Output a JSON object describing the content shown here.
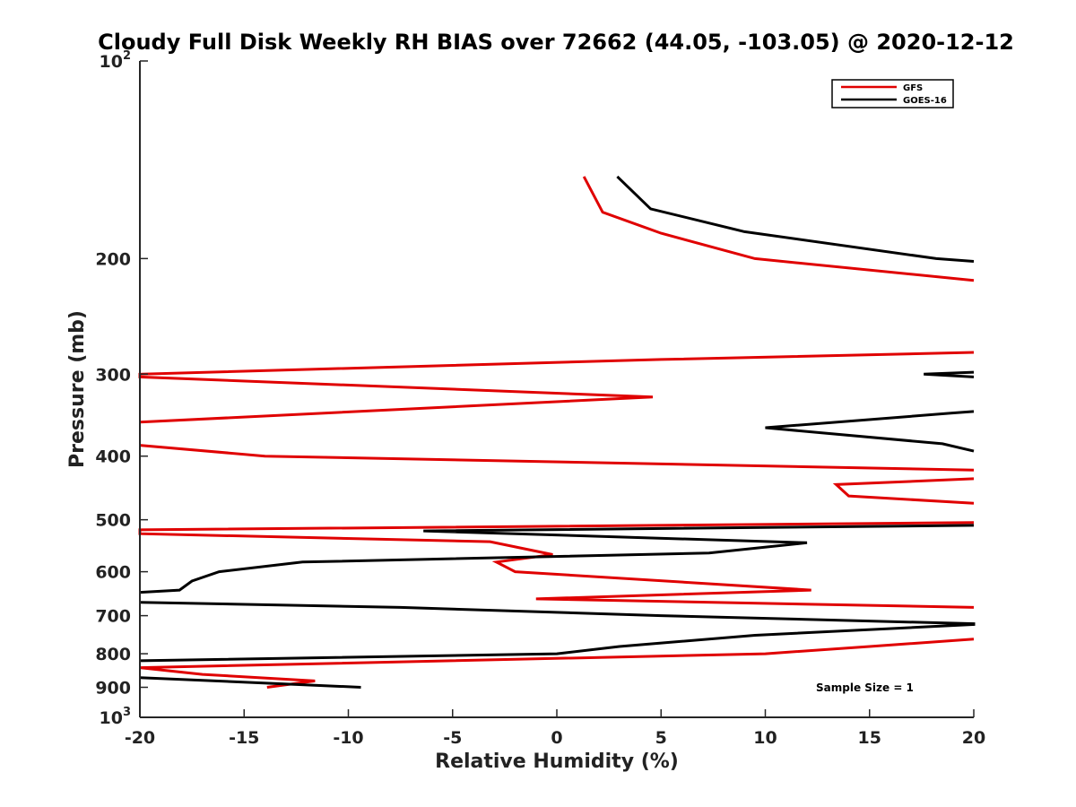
{
  "chart_data": {
    "type": "line",
    "title": "Cloudy Full Disk Weekly RH BIAS over 72662 (44.05, -103.05) @ 2020-12-12",
    "xlabel": "Relative Humidity (%)",
    "ylabel": "Pressure (mb)",
    "xlim": [
      -20,
      20
    ],
    "ylim": [
      100,
      1000
    ],
    "y_scale": "log",
    "y_reversed": true,
    "grid": false,
    "legend_position": "top-right",
    "x_ticks": [
      {
        "value": -20,
        "label": "-20"
      },
      {
        "value": -15,
        "label": "-15"
      },
      {
        "value": -10,
        "label": "-10"
      },
      {
        "value": -5,
        "label": "-5"
      },
      {
        "value": 0,
        "label": "0"
      },
      {
        "value": 5,
        "label": "5"
      },
      {
        "value": 10,
        "label": "10"
      },
      {
        "value": 15,
        "label": "15"
      },
      {
        "value": 20,
        "label": "20"
      }
    ],
    "y_ticks": [
      {
        "value": 100,
        "base": "10",
        "exp": "2"
      },
      {
        "value": 200,
        "label": "200"
      },
      {
        "value": 300,
        "label": "300"
      },
      {
        "value": 400,
        "label": "400"
      },
      {
        "value": 500,
        "label": "500"
      },
      {
        "value": 600,
        "label": "600"
      },
      {
        "value": 700,
        "label": "700"
      },
      {
        "value": 800,
        "label": "800"
      },
      {
        "value": 900,
        "label": "900"
      },
      {
        "value": 1000,
        "base": "10",
        "exp": "3"
      }
    ],
    "series": [
      {
        "name": "GFS",
        "color": "#e00000",
        "points": [
          [
            1.3,
            150
          ],
          [
            2.2,
            170
          ],
          [
            5.0,
            183
          ],
          [
            9.5,
            200
          ],
          [
            20,
            216
          ],
          [
            null,
            null
          ],
          [
            20,
            278
          ],
          [
            5.0,
            285
          ],
          [
            -20,
            300
          ],
          [
            -20,
            303
          ],
          [
            4.6,
            325
          ],
          [
            -20,
            355
          ],
          [
            null,
            null
          ],
          [
            -20,
            385
          ],
          [
            -14,
            400
          ],
          [
            20,
            420
          ],
          [
            null,
            null
          ],
          [
            20,
            433
          ],
          [
            13.4,
            442
          ],
          [
            14,
            460
          ],
          [
            20,
            472
          ],
          [
            null,
            null
          ],
          [
            20,
            505
          ],
          [
            -20,
            518
          ],
          [
            -20,
            525
          ],
          [
            -3.2,
            540
          ],
          [
            -0.2,
            565
          ],
          [
            -2.9,
            580
          ],
          [
            -2,
            600
          ],
          [
            12.2,
            640
          ],
          [
            -1,
            660
          ],
          [
            20,
            680
          ],
          [
            null,
            null
          ],
          [
            20,
            760
          ],
          [
            15,
            780
          ],
          [
            10,
            800
          ],
          [
            -20,
            840
          ],
          [
            -17,
            860
          ],
          [
            -11.6,
            880
          ],
          [
            -13.9,
            900
          ]
        ]
      },
      {
        "name": "GOES-16",
        "color": "#000000",
        "points": [
          [
            2.9,
            150
          ],
          [
            4.5,
            168
          ],
          [
            9.0,
            182
          ],
          [
            18.2,
            200
          ],
          [
            20,
            202
          ],
          [
            null,
            null
          ],
          [
            20,
            298
          ],
          [
            17.6,
            300
          ],
          [
            20,
            303
          ],
          [
            null,
            null
          ],
          [
            20,
            342
          ],
          [
            18.9,
            344
          ],
          [
            10,
            362
          ],
          [
            18.5,
            383
          ],
          [
            20,
            393
          ],
          [
            null,
            null
          ],
          [
            20,
            510
          ],
          [
            -6.4,
            520
          ],
          [
            12,
            542
          ],
          [
            7.3,
            562
          ],
          [
            -12.2,
            580
          ],
          [
            -16.2,
            600
          ],
          [
            -17.5,
            620
          ],
          [
            -18.1,
            640
          ],
          [
            -20,
            645
          ],
          [
            null,
            null
          ],
          [
            -20,
            668
          ],
          [
            -7.5,
            680
          ],
          [
            5,
            700
          ],
          [
            20,
            720
          ],
          [
            20,
            722
          ],
          [
            9.5,
            750
          ],
          [
            3,
            780
          ],
          [
            0,
            800
          ],
          [
            -20,
            820
          ],
          [
            null,
            null
          ],
          [
            -20,
            870
          ],
          [
            -9.4,
            900
          ]
        ]
      }
    ],
    "annotations": [
      {
        "text": "Sample Size = 1"
      }
    ]
  }
}
